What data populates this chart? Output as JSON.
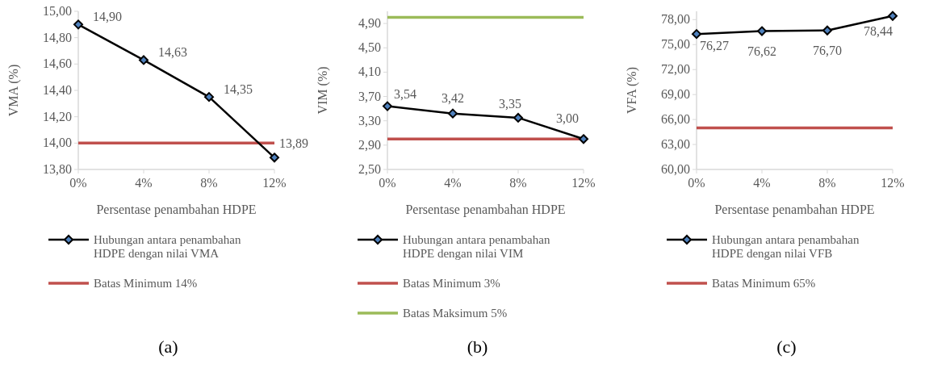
{
  "chart_data": [
    {
      "type": "line",
      "xlabel": "Persentase penambahan HDPE",
      "ylabel": "VMA (%)",
      "categories": [
        "0%",
        "4%",
        "8%",
        "12%"
      ],
      "series": [
        {
          "name": "Hubungan antara penambahan HDPE dengan nilai VMA",
          "color": "#000000",
          "values": [
            14.9,
            14.63,
            14.35,
            13.89
          ],
          "value_labels": [
            "14,90",
            "14,63",
            "14,35",
            "13,89"
          ]
        }
      ],
      "ylim": [
        13.8,
        15.0
      ],
      "yticks": [
        {
          "value": 13.8,
          "label": "13,80"
        },
        {
          "value": 14.0,
          "label": "14,00"
        },
        {
          "value": 14.2,
          "label": "14,20"
        },
        {
          "value": 14.4,
          "label": "14,40"
        },
        {
          "value": 14.6,
          "label": "14,60"
        },
        {
          "value": 14.8,
          "label": "14,80"
        },
        {
          "value": 15.0,
          "label": "15,00"
        }
      ],
      "ref_lines": [
        {
          "axis": "y",
          "value": 14,
          "label": "Batas Minimum 14%",
          "color": "#c0504d"
        }
      ],
      "marker": "diamond",
      "grid": false,
      "legend": "bottom",
      "annotations": [
        "(a)"
      ]
    },
    {
      "type": "line",
      "xlabel": "Persentase penambahan HDPE",
      "ylabel": "VIM (%)",
      "categories": [
        "0%",
        "4%",
        "8%",
        "12%"
      ],
      "series": [
        {
          "name": "Hubungan antara penambahan HDPE dengan nilai VIM",
          "color": "#000000",
          "values": [
            3.54,
            3.42,
            3.35,
            3.0
          ],
          "value_labels": [
            "3,54",
            "3,42",
            "3,35",
            "3,00"
          ]
        }
      ],
      "ylim": [
        2.5,
        5.1
      ],
      "yticks": [
        {
          "value": 2.5,
          "label": "2,50"
        },
        {
          "value": 2.9,
          "label": "2,90"
        },
        {
          "value": 3.3,
          "label": "3,30"
        },
        {
          "value": 3.7,
          "label": "3,70"
        },
        {
          "value": 4.1,
          "label": "4,10"
        },
        {
          "value": 4.5,
          "label": "4,50"
        },
        {
          "value": 4.9,
          "label": "4,90"
        }
      ],
      "ref_lines": [
        {
          "axis": "y",
          "value": 3,
          "label": "Batas Minimum 3%",
          "color": "#c0504d"
        },
        {
          "axis": "y",
          "value": 5,
          "label": "Batas Maksimum 5%",
          "color": "#9bbb59"
        }
      ],
      "marker": "diamond",
      "grid": false,
      "legend": "bottom",
      "annotations": [
        "(b)"
      ]
    },
    {
      "type": "line",
      "xlabel": "Persentase penambahan HDPE",
      "ylabel": "VFA (%)",
      "categories": [
        "0%",
        "4%",
        "8%",
        "12%"
      ],
      "series": [
        {
          "name": "Hubungan antara penambahan HDPE dengan nilai VFB",
          "color": "#000000",
          "values": [
            76.27,
            76.62,
            76.7,
            78.44
          ],
          "value_labels": [
            "76,27",
            "76,62",
            "76,70",
            "78,44"
          ]
        }
      ],
      "ylim": [
        60,
        79
      ],
      "yticks": [
        {
          "value": 60,
          "label": "60,00"
        },
        {
          "value": 63,
          "label": "63,00"
        },
        {
          "value": 66,
          "label": "66,00"
        },
        {
          "value": 69,
          "label": "69,00"
        },
        {
          "value": 72,
          "label": "72,00"
        },
        {
          "value": 75,
          "label": "75,00"
        },
        {
          "value": 78,
          "label": "78,00"
        }
      ],
      "ref_lines": [
        {
          "axis": "y",
          "value": 65,
          "label": "Batas Minimum 65%",
          "color": "#c0504d"
        }
      ],
      "marker": "diamond",
      "grid": false,
      "legend": "bottom",
      "annotations": [
        "(c)"
      ]
    }
  ]
}
